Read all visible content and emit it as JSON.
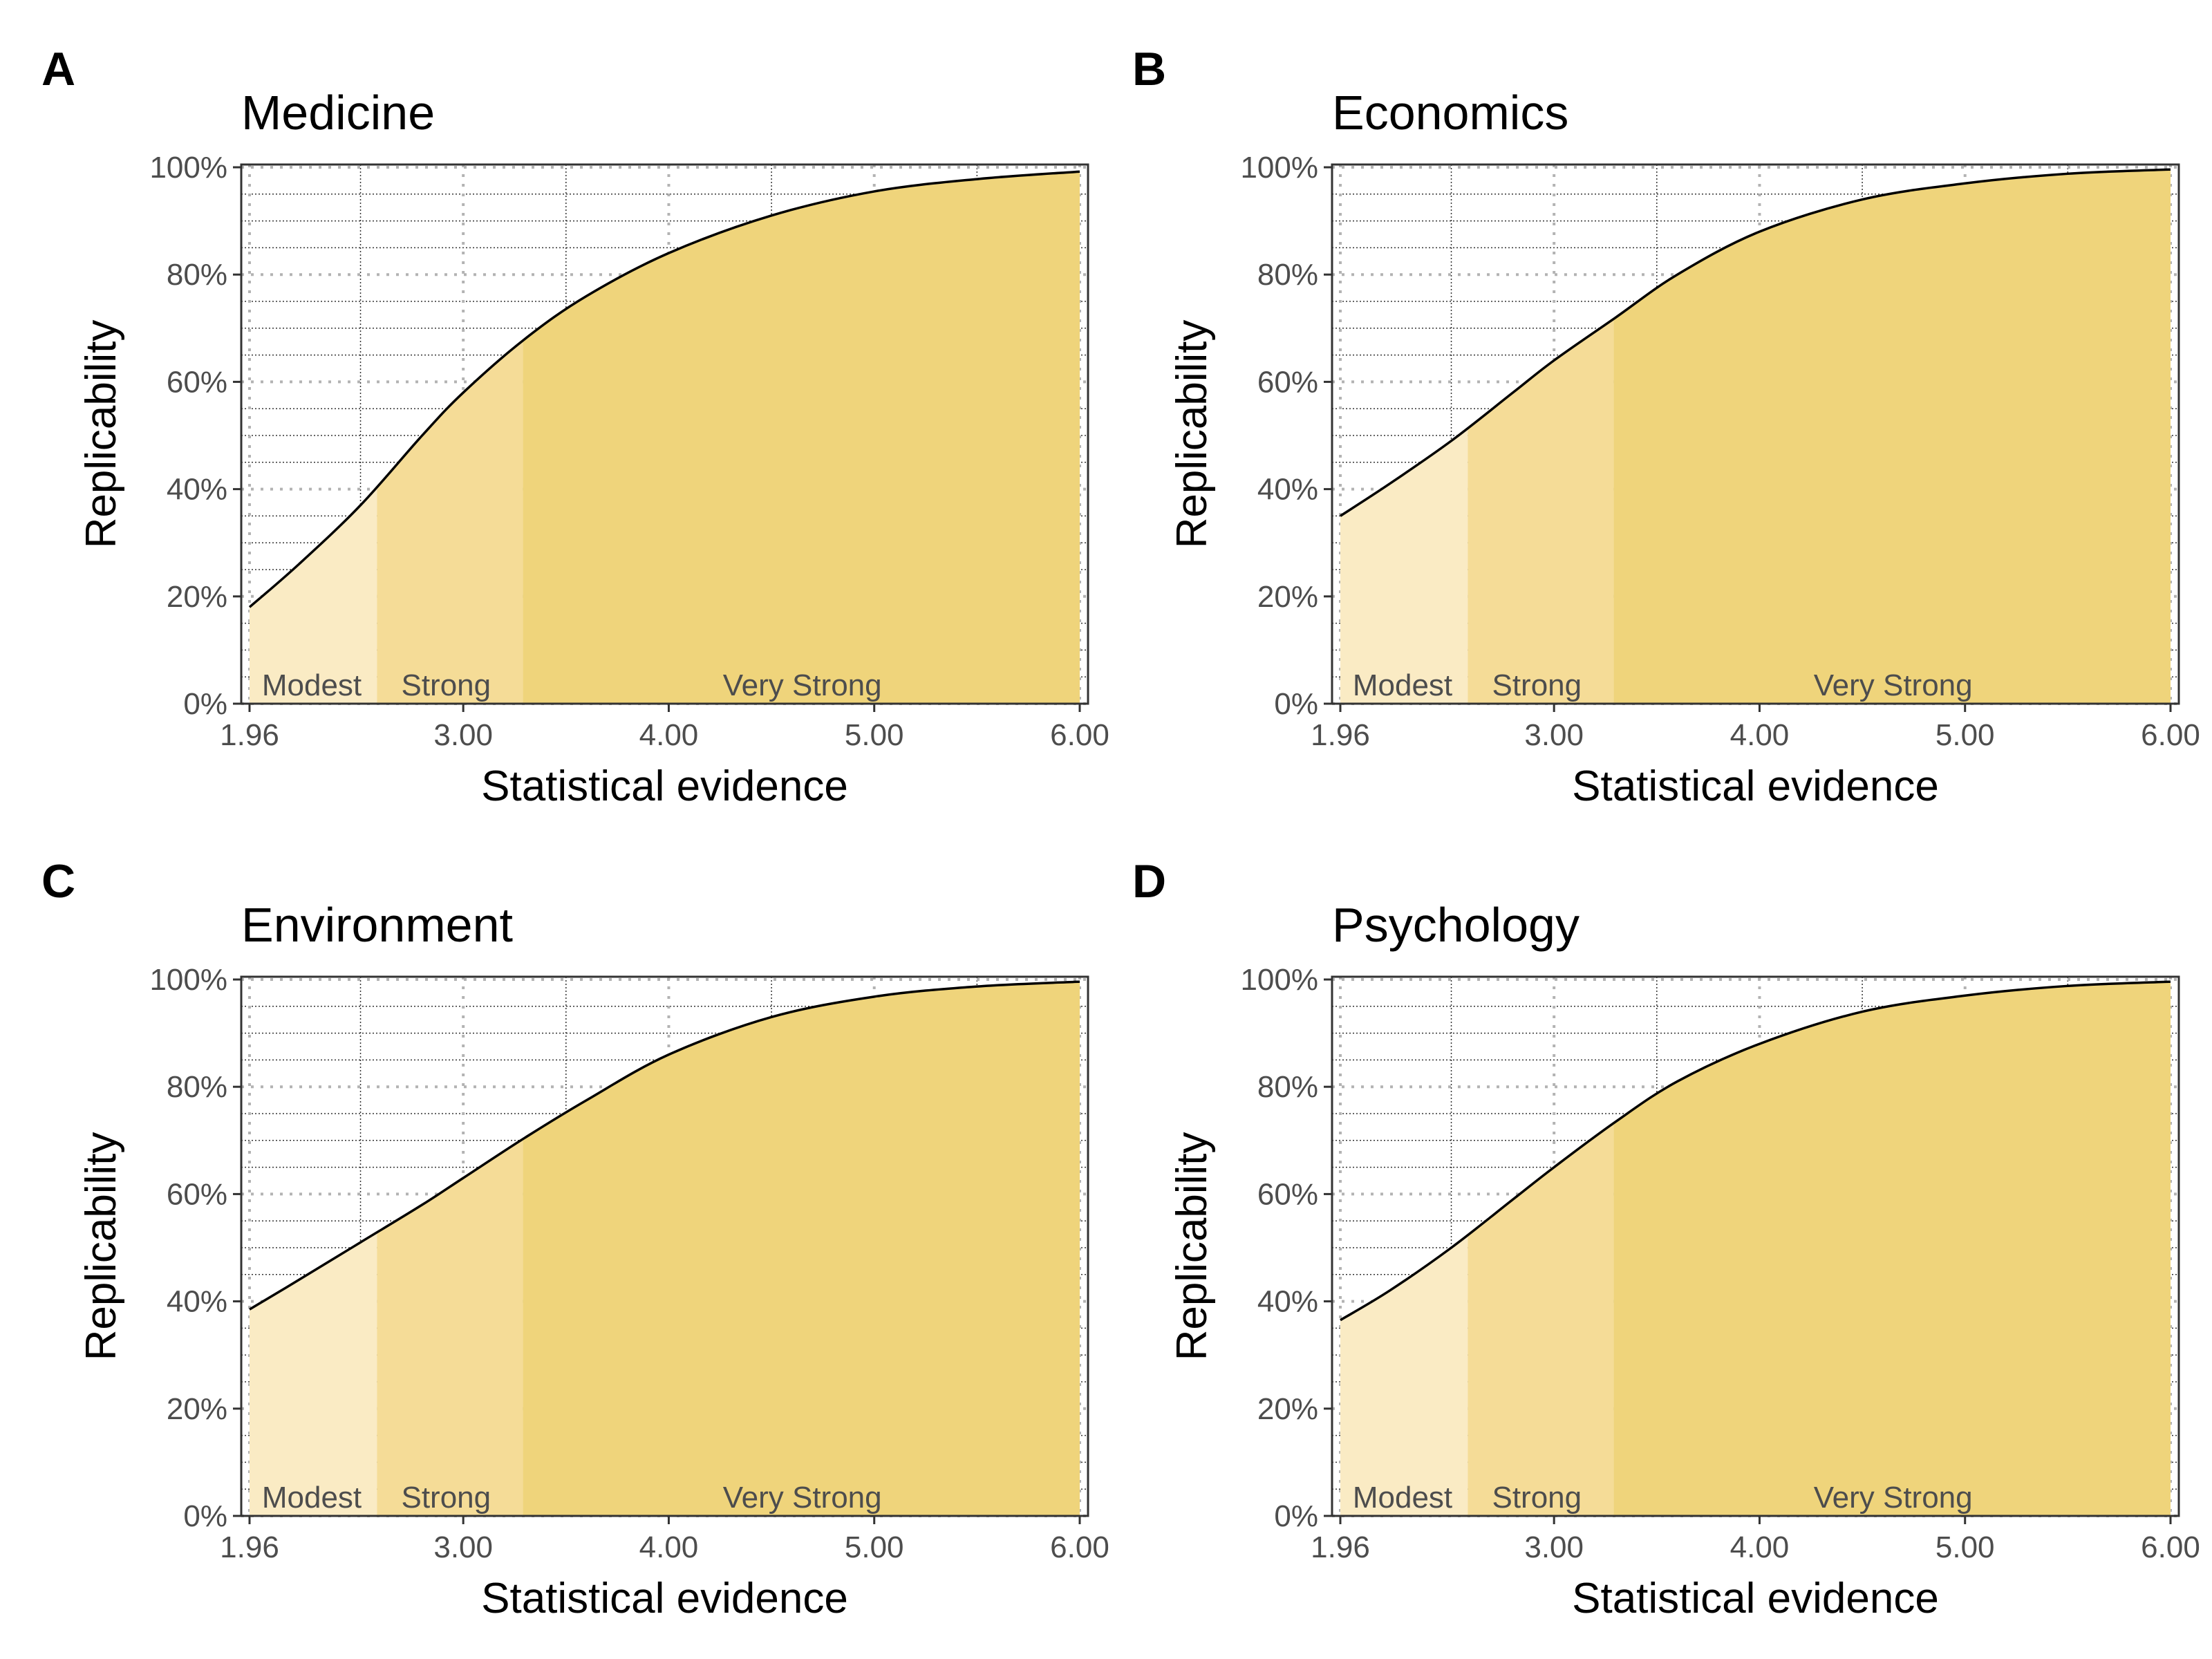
{
  "chart_data": [
    {
      "panel": "A",
      "type": "area",
      "title": "Medicine",
      "xlabel": "Statistical evidence",
      "ylabel": "Replicability",
      "xlim": [
        1.96,
        6.0
      ],
      "ylim": [
        0,
        1
      ],
      "xticks": [
        1.96,
        3.0,
        4.0,
        5.0,
        6.0
      ],
      "xtick_labels": [
        "1.96",
        "3.00",
        "4.00",
        "5.00",
        "6.00"
      ],
      "yticks": [
        0,
        0.2,
        0.4,
        0.6,
        0.8,
        1.0
      ],
      "ytick_labels": [
        "0%",
        "20%",
        "40%",
        "60%",
        "80%",
        "100%"
      ],
      "bands": [
        {
          "label": "Modest",
          "from": 1.96,
          "to": 2.58
        },
        {
          "label": "Strong",
          "from": 2.58,
          "to": 3.29
        },
        {
          "label": "Very Strong",
          "from": 3.29,
          "to": 6.0
        }
      ],
      "x": [
        1.96,
        2.2,
        2.5,
        2.8,
        3.0,
        3.3,
        3.6,
        4.0,
        4.5,
        5.0,
        5.5,
        6.0
      ],
      "y": [
        0.18,
        0.26,
        0.37,
        0.5,
        0.58,
        0.68,
        0.76,
        0.84,
        0.91,
        0.955,
        0.978,
        0.992
      ]
    },
    {
      "panel": "B",
      "type": "area",
      "title": "Economics",
      "xlabel": "Statistical evidence",
      "ylabel": "Replicability",
      "xlim": [
        1.96,
        6.0
      ],
      "ylim": [
        0,
        1
      ],
      "xticks": [
        1.96,
        3.0,
        4.0,
        5.0,
        6.0
      ],
      "xtick_labels": [
        "1.96",
        "3.00",
        "4.00",
        "5.00",
        "6.00"
      ],
      "yticks": [
        0,
        0.2,
        0.4,
        0.6,
        0.8,
        1.0
      ],
      "ytick_labels": [
        "0%",
        "20%",
        "40%",
        "60%",
        "80%",
        "100%"
      ],
      "bands": [
        {
          "label": "Modest",
          "from": 1.96,
          "to": 2.58
        },
        {
          "label": "Strong",
          "from": 2.58,
          "to": 3.29
        },
        {
          "label": "Very Strong",
          "from": 3.29,
          "to": 6.0
        }
      ],
      "x": [
        1.96,
        2.2,
        2.5,
        2.8,
        3.0,
        3.3,
        3.6,
        4.0,
        4.5,
        5.0,
        5.5,
        6.0
      ],
      "y": [
        0.35,
        0.41,
        0.49,
        0.58,
        0.64,
        0.72,
        0.8,
        0.88,
        0.94,
        0.97,
        0.988,
        0.996
      ]
    },
    {
      "panel": "C",
      "type": "area",
      "title": "Environment",
      "xlabel": "Statistical evidence",
      "ylabel": "Replicability",
      "xlim": [
        1.96,
        6.0
      ],
      "ylim": [
        0,
        1
      ],
      "xticks": [
        1.96,
        3.0,
        4.0,
        5.0,
        6.0
      ],
      "xtick_labels": [
        "1.96",
        "3.00",
        "4.00",
        "5.00",
        "6.00"
      ],
      "yticks": [
        0,
        0.2,
        0.4,
        0.6,
        0.8,
        1.0
      ],
      "ytick_labels": [
        "0%",
        "20%",
        "40%",
        "60%",
        "80%",
        "100%"
      ],
      "bands": [
        {
          "label": "Modest",
          "from": 1.96,
          "to": 2.58
        },
        {
          "label": "Strong",
          "from": 2.58,
          "to": 3.29
        },
        {
          "label": "Very Strong",
          "from": 3.29,
          "to": 6.0
        }
      ],
      "x": [
        1.96,
        2.2,
        2.5,
        2.8,
        3.0,
        3.3,
        3.6,
        4.0,
        4.5,
        5.0,
        5.5,
        6.0
      ],
      "y": [
        0.385,
        0.44,
        0.51,
        0.58,
        0.63,
        0.705,
        0.775,
        0.86,
        0.93,
        0.968,
        0.987,
        0.996
      ]
    },
    {
      "panel": "D",
      "type": "area",
      "title": "Psychology",
      "xlabel": "Statistical evidence",
      "ylabel": "Replicability",
      "xlim": [
        1.96,
        6.0
      ],
      "ylim": [
        0,
        1
      ],
      "xticks": [
        1.96,
        3.0,
        4.0,
        5.0,
        6.0
      ],
      "xtick_labels": [
        "1.96",
        "3.00",
        "4.00",
        "5.00",
        "6.00"
      ],
      "yticks": [
        0,
        0.2,
        0.4,
        0.6,
        0.8,
        1.0
      ],
      "ytick_labels": [
        "0%",
        "20%",
        "40%",
        "60%",
        "80%",
        "100%"
      ],
      "bands": [
        {
          "label": "Modest",
          "from": 1.96,
          "to": 2.58
        },
        {
          "label": "Strong",
          "from": 2.58,
          "to": 3.29
        },
        {
          "label": "Very Strong",
          "from": 3.29,
          "to": 6.0
        }
      ],
      "x": [
        1.96,
        2.2,
        2.5,
        2.8,
        3.0,
        3.3,
        3.6,
        4.0,
        4.5,
        5.0,
        5.5,
        6.0
      ],
      "y": [
        0.365,
        0.42,
        0.5,
        0.59,
        0.65,
        0.735,
        0.81,
        0.88,
        0.94,
        0.97,
        0.988,
        0.996
      ]
    }
  ],
  "colors": {
    "modest_fill": "#faebc4",
    "strong_fill": "#f5dc97",
    "very_strong_fill": "#efd47b",
    "curve": "#000000",
    "grid_major": "#b3b3b3",
    "grid_minor": "#333333",
    "axis": "#333333"
  }
}
